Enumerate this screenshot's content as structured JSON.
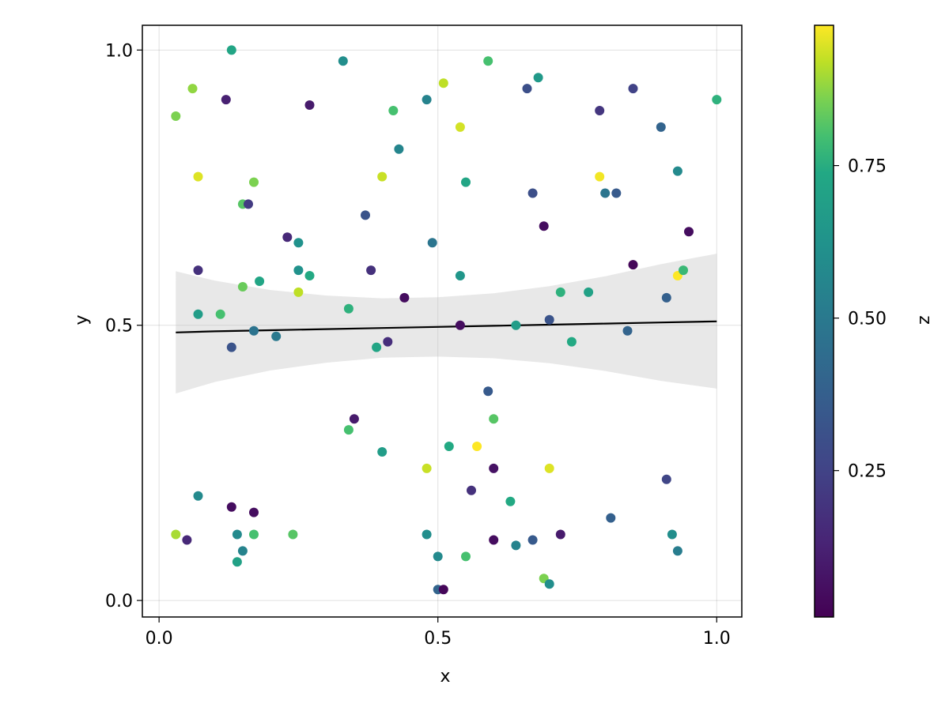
{
  "chart_data": {
    "type": "scatter",
    "title": "",
    "xlabel": "x",
    "ylabel": "y",
    "xlim": [
      -0.03,
      1.045
    ],
    "ylim": [
      -0.03,
      1.045
    ],
    "x_ticks": [
      "0.0",
      "0.5",
      "1.0"
    ],
    "y_ticks": [
      "0.0",
      "0.5",
      "1.0"
    ],
    "grid": true,
    "colormap": "viridis",
    "colorbar": {
      "label": "z",
      "range": [
        0.01,
        0.98
      ],
      "ticks": [
        "0.25",
        "0.50",
        "0.75"
      ]
    },
    "points": [
      {
        "x": 0.03,
        "y": 0.12,
        "z": 0.9
      },
      {
        "x": 0.05,
        "y": 0.11,
        "z": 0.15
      },
      {
        "x": 0.03,
        "y": 0.88,
        "z": 0.86
      },
      {
        "x": 0.06,
        "y": 0.93,
        "z": 0.88
      },
      {
        "x": 0.07,
        "y": 0.77,
        "z": 0.95
      },
      {
        "x": 0.07,
        "y": 0.6,
        "z": 0.18
      },
      {
        "x": 0.07,
        "y": 0.52,
        "z": 0.68
      },
      {
        "x": 0.07,
        "y": 0.19,
        "z": 0.58
      },
      {
        "x": 0.11,
        "y": 0.52,
        "z": 0.8
      },
      {
        "x": 0.12,
        "y": 0.91,
        "z": 0.12
      },
      {
        "x": 0.13,
        "y": 1.0,
        "z": 0.72
      },
      {
        "x": 0.13,
        "y": 0.17,
        "z": 0.05
      },
      {
        "x": 0.13,
        "y": 0.46,
        "z": 0.32
      },
      {
        "x": 0.14,
        "y": 0.07,
        "z": 0.7
      },
      {
        "x": 0.14,
        "y": 0.12,
        "z": 0.58
      },
      {
        "x": 0.15,
        "y": 0.09,
        "z": 0.55
      },
      {
        "x": 0.15,
        "y": 0.72,
        "z": 0.82
      },
      {
        "x": 0.16,
        "y": 0.72,
        "z": 0.22
      },
      {
        "x": 0.15,
        "y": 0.57,
        "z": 0.84
      },
      {
        "x": 0.17,
        "y": 0.76,
        "z": 0.86
      },
      {
        "x": 0.17,
        "y": 0.12,
        "z": 0.8
      },
      {
        "x": 0.17,
        "y": 0.49,
        "z": 0.47
      },
      {
        "x": 0.17,
        "y": 0.16,
        "z": 0.05
      },
      {
        "x": 0.18,
        "y": 0.58,
        "z": 0.72
      },
      {
        "x": 0.21,
        "y": 0.48,
        "z": 0.5
      },
      {
        "x": 0.23,
        "y": 0.66,
        "z": 0.15
      },
      {
        "x": 0.24,
        "y": 0.12,
        "z": 0.82
      },
      {
        "x": 0.25,
        "y": 0.56,
        "z": 0.92
      },
      {
        "x": 0.25,
        "y": 0.65,
        "z": 0.62
      },
      {
        "x": 0.25,
        "y": 0.6,
        "z": 0.62
      },
      {
        "x": 0.27,
        "y": 0.59,
        "z": 0.74
      },
      {
        "x": 0.27,
        "y": 0.9,
        "z": 0.1
      },
      {
        "x": 0.33,
        "y": 0.98,
        "z": 0.6
      },
      {
        "x": 0.34,
        "y": 0.31,
        "z": 0.8
      },
      {
        "x": 0.34,
        "y": 0.53,
        "z": 0.76
      },
      {
        "x": 0.35,
        "y": 0.33,
        "z": 0.1
      },
      {
        "x": 0.37,
        "y": 0.7,
        "z": 0.32
      },
      {
        "x": 0.38,
        "y": 0.6,
        "z": 0.18
      },
      {
        "x": 0.39,
        "y": 0.46,
        "z": 0.72
      },
      {
        "x": 0.4,
        "y": 0.77,
        "z": 0.93
      },
      {
        "x": 0.4,
        "y": 0.27,
        "z": 0.68
      },
      {
        "x": 0.41,
        "y": 0.47,
        "z": 0.17
      },
      {
        "x": 0.42,
        "y": 0.89,
        "z": 0.8
      },
      {
        "x": 0.43,
        "y": 0.82,
        "z": 0.56
      },
      {
        "x": 0.44,
        "y": 0.55,
        "z": 0.05
      },
      {
        "x": 0.48,
        "y": 0.91,
        "z": 0.55
      },
      {
        "x": 0.48,
        "y": 0.24,
        "z": 0.93
      },
      {
        "x": 0.48,
        "y": 0.12,
        "z": 0.6
      },
      {
        "x": 0.49,
        "y": 0.65,
        "z": 0.48
      },
      {
        "x": 0.5,
        "y": 0.08,
        "z": 0.58
      },
      {
        "x": 0.5,
        "y": 0.02,
        "z": 0.4
      },
      {
        "x": 0.51,
        "y": 0.02,
        "z": 0.03
      },
      {
        "x": 0.51,
        "y": 0.94,
        "z": 0.92
      },
      {
        "x": 0.52,
        "y": 0.28,
        "z": 0.74
      },
      {
        "x": 0.54,
        "y": 0.86,
        "z": 0.94
      },
      {
        "x": 0.54,
        "y": 0.59,
        "z": 0.64
      },
      {
        "x": 0.54,
        "y": 0.5,
        "z": 0.05
      },
      {
        "x": 0.55,
        "y": 0.76,
        "z": 0.72
      },
      {
        "x": 0.55,
        "y": 0.08,
        "z": 0.8
      },
      {
        "x": 0.56,
        "y": 0.2,
        "z": 0.18
      },
      {
        "x": 0.57,
        "y": 0.28,
        "z": 0.98
      },
      {
        "x": 0.59,
        "y": 0.98,
        "z": 0.8
      },
      {
        "x": 0.59,
        "y": 0.38,
        "z": 0.35
      },
      {
        "x": 0.6,
        "y": 0.33,
        "z": 0.82
      },
      {
        "x": 0.6,
        "y": 0.24,
        "z": 0.07
      },
      {
        "x": 0.6,
        "y": 0.11,
        "z": 0.05
      },
      {
        "x": 0.63,
        "y": 0.18,
        "z": 0.74
      },
      {
        "x": 0.64,
        "y": 0.5,
        "z": 0.68
      },
      {
        "x": 0.64,
        "y": 0.1,
        "z": 0.55
      },
      {
        "x": 0.66,
        "y": 0.93,
        "z": 0.3
      },
      {
        "x": 0.67,
        "y": 0.11,
        "z": 0.35
      },
      {
        "x": 0.67,
        "y": 0.74,
        "z": 0.3
      },
      {
        "x": 0.68,
        "y": 0.95,
        "z": 0.66
      },
      {
        "x": 0.69,
        "y": 0.68,
        "z": 0.05
      },
      {
        "x": 0.69,
        "y": 0.04,
        "z": 0.86
      },
      {
        "x": 0.7,
        "y": 0.03,
        "z": 0.6
      },
      {
        "x": 0.7,
        "y": 0.51,
        "z": 0.32
      },
      {
        "x": 0.7,
        "y": 0.24,
        "z": 0.95
      },
      {
        "x": 0.72,
        "y": 0.56,
        "z": 0.76
      },
      {
        "x": 0.72,
        "y": 0.12,
        "z": 0.1
      },
      {
        "x": 0.74,
        "y": 0.47,
        "z": 0.74
      },
      {
        "x": 0.77,
        "y": 0.56,
        "z": 0.7
      },
      {
        "x": 0.79,
        "y": 0.89,
        "z": 0.2
      },
      {
        "x": 0.79,
        "y": 0.77,
        "z": 0.97
      },
      {
        "x": 0.8,
        "y": 0.74,
        "z": 0.48
      },
      {
        "x": 0.81,
        "y": 0.15,
        "z": 0.38
      },
      {
        "x": 0.82,
        "y": 0.74,
        "z": 0.35
      },
      {
        "x": 0.84,
        "y": 0.49,
        "z": 0.4
      },
      {
        "x": 0.85,
        "y": 0.93,
        "z": 0.25
      },
      {
        "x": 0.85,
        "y": 0.61,
        "z": 0.03
      },
      {
        "x": 0.9,
        "y": 0.86,
        "z": 0.4
      },
      {
        "x": 0.91,
        "y": 0.22,
        "z": 0.26
      },
      {
        "x": 0.91,
        "y": 0.55,
        "z": 0.38
      },
      {
        "x": 0.92,
        "y": 0.12,
        "z": 0.6
      },
      {
        "x": 0.93,
        "y": 0.59,
        "z": 0.98
      },
      {
        "x": 0.93,
        "y": 0.09,
        "z": 0.52
      },
      {
        "x": 0.93,
        "y": 0.78,
        "z": 0.58
      },
      {
        "x": 0.94,
        "y": 0.6,
        "z": 0.78
      },
      {
        "x": 0.95,
        "y": 0.67,
        "z": 0.05
      },
      {
        "x": 1.0,
        "y": 0.91,
        "z": 0.76
      }
    ],
    "fit": {
      "x": [
        0.03,
        0.1,
        0.2,
        0.3,
        0.4,
        0.5,
        0.6,
        0.7,
        0.8,
        0.9,
        1.0
      ],
      "y": [
        0.487,
        0.489,
        0.491,
        0.493,
        0.495,
        0.497,
        0.499,
        0.501,
        0.503,
        0.505,
        0.507
      ],
      "lower": [
        0.376,
        0.397,
        0.418,
        0.432,
        0.441,
        0.443,
        0.44,
        0.431,
        0.417,
        0.399,
        0.385
      ],
      "upper": [
        0.598,
        0.581,
        0.564,
        0.554,
        0.549,
        0.551,
        0.558,
        0.571,
        0.589,
        0.611,
        0.63
      ]
    }
  }
}
